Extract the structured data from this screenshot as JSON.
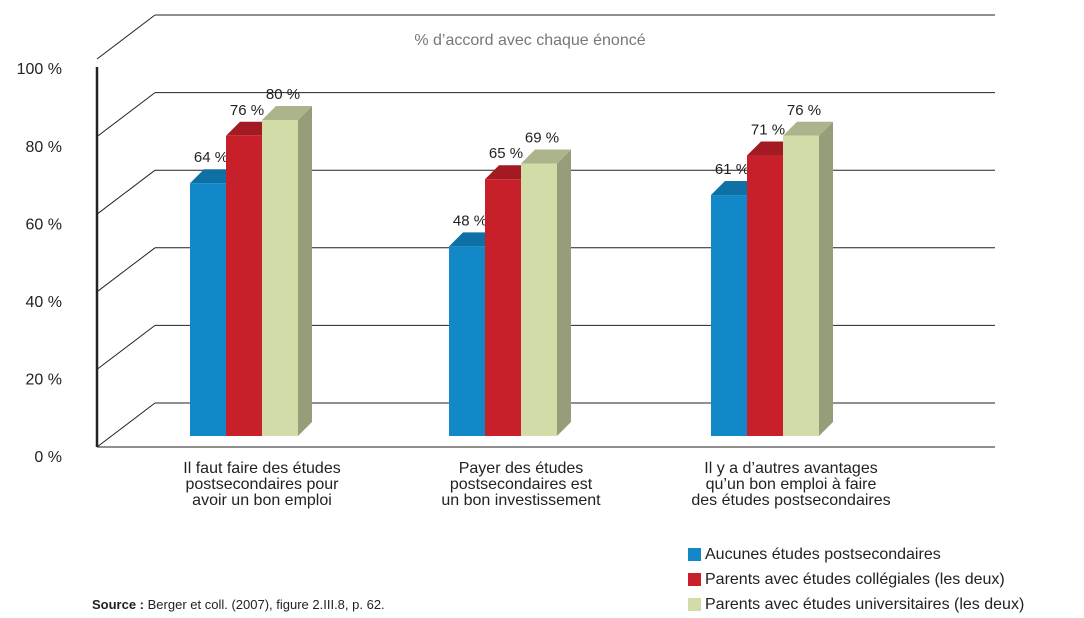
{
  "chart_data": {
    "type": "bar3d",
    "title": "% d’accord avec chaque énoncé",
    "categories": [
      [
        "Il faut faire des études",
        "postsecondaires pour",
        "avoir un bon emploi"
      ],
      [
        "Payer des études",
        "postsecondaires est",
        "un bon investissement"
      ],
      [
        "Il y a d’autres avantages",
        "qu’un bon emploi à faire",
        "des études postsecondaires"
      ]
    ],
    "series": [
      {
        "name": "Aucunes études postsecondaires",
        "color": "#1288c9",
        "values": [
          64,
          48,
          61
        ],
        "value_labels": [
          "64 %",
          "48 %",
          "61 %"
        ]
      },
      {
        "name": "Parents avec études collégiales (les deux)",
        "color": "#c8202a",
        "values": [
          76,
          65,
          71
        ],
        "value_labels": [
          "76 %",
          "65 %",
          "71 %"
        ]
      },
      {
        "name": "Parents avec études universitaires (les deux)",
        "color": "#d1dca8",
        "values": [
          80,
          69,
          76
        ],
        "value_labels": [
          "80 %",
          "69 %",
          "76 %"
        ]
      }
    ],
    "ylim": [
      0,
      100
    ],
    "yticks": [
      {
        "value": 0,
        "label": "0 %"
      },
      {
        "value": 20,
        "label": "20 %"
      },
      {
        "value": 40,
        "label": "40 %"
      },
      {
        "value": 60,
        "label": "60 %"
      },
      {
        "value": 80,
        "label": "80 %"
      },
      {
        "value": 100,
        "label": "100 %"
      }
    ],
    "grid": true,
    "legend": "bottom-right"
  },
  "source": {
    "label": "Source :",
    "text": "Berger et coll. (2007), figure 2.III.8, p. 62."
  }
}
